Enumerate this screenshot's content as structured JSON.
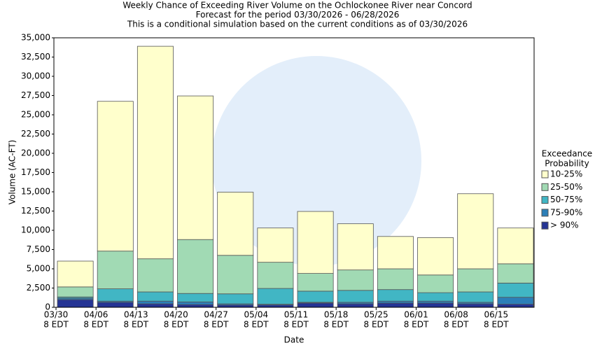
{
  "chart_data": {
    "type": "stacked_bar",
    "title": [
      "Weekly Chance of Exceeding River Volume on the Ochlockonee River near Concord",
      "Forecast for the period 03/30/2026 - 06/28/2026",
      "This is a conditional simulation based on the current conditions as of 03/30/2026"
    ],
    "x_label": "Date",
    "y_label": "Volume (AC-FT)",
    "legend_title": [
      "Exceedance",
      "Probability"
    ],
    "legend_position": "right",
    "categories": [
      [
        "03/30",
        "8 EDT"
      ],
      [
        "04/06",
        "8 EDT"
      ],
      [
        "04/13",
        "8 EDT"
      ],
      [
        "04/20",
        "8 EDT"
      ],
      [
        "04/27",
        "8 EDT"
      ],
      [
        "05/04",
        "8 EDT"
      ],
      [
        "05/11",
        "8 EDT"
      ],
      [
        "05/18",
        "8 EDT"
      ],
      [
        "05/25",
        "8 EDT"
      ],
      [
        "06/01",
        "8 EDT"
      ],
      [
        "06/08",
        "8 EDT"
      ],
      [
        "06/15",
        "8 EDT"
      ]
    ],
    "series": [
      {
        "name": "> 90%",
        "color": "#253494",
        "values": [
          1000,
          650,
          450,
          350,
          300,
          300,
          550,
          450,
          550,
          550,
          450,
          400
        ]
      },
      {
        "name": "75-90%",
        "color": "#2c7fb8",
        "values": [
          200,
          150,
          350,
          350,
          150,
          100,
          100,
          200,
          250,
          250,
          200,
          900
        ]
      },
      {
        "name": "50-75%",
        "color": "#41b6c4",
        "values": [
          150,
          1600,
          1200,
          1100,
          1300,
          2050,
          1450,
          1550,
          1500,
          1100,
          1350,
          1850
        ]
      },
      {
        "name": "25-50%",
        "color": "#a1dab4",
        "values": [
          1300,
          4900,
          4300,
          7000,
          5000,
          3400,
          2300,
          2650,
          2700,
          2300,
          3000,
          2500
        ]
      },
      {
        "name": "10-25%",
        "color": "#ffffcc",
        "values": [
          3350,
          19450,
          27600,
          18650,
          8200,
          4450,
          8050,
          6000,
          4200,
          4850,
          9750,
          4650
        ]
      }
    ],
    "ylim": [
      0,
      35000
    ],
    "yticks": [
      0,
      {
        "value": 2500,
        "label": "2,500"
      },
      {
        "value": 5000,
        "label": "5,000"
      },
      {
        "value": 7500,
        "label": "7,500"
      },
      {
        "value": 10000,
        "label": "10,000"
      },
      {
        "value": 12500,
        "label": "12,500"
      },
      {
        "value": 15000,
        "label": "15,000"
      },
      {
        "value": 17500,
        "label": "17,500"
      },
      {
        "value": 20000,
        "label": "20,000"
      },
      {
        "value": 22500,
        "label": "22,500"
      },
      {
        "value": 25000,
        "label": "25,000"
      },
      {
        "value": 27500,
        "label": "27,500"
      },
      {
        "value": 30000,
        "label": "30,000"
      },
      {
        "value": 32500,
        "label": "32,500"
      },
      {
        "value": 35000,
        "label": "35,000"
      }
    ],
    "grid": false
  }
}
